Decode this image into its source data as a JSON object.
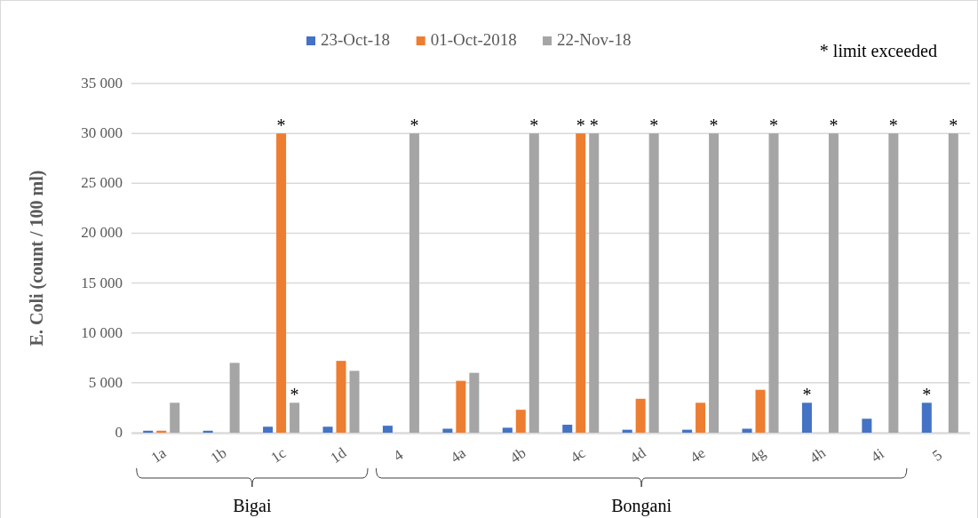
{
  "chart_data": {
    "type": "bar",
    "ylabel": "E. Coli (count / 100 ml)",
    "categories": [
      "1a",
      "1b",
      "1c",
      "1d",
      "4",
      "4a",
      "4b",
      "4c",
      "4d",
      "4e",
      "4g",
      "4h",
      "4i",
      "5"
    ],
    "series": [
      {
        "name": "23-Oct-18",
        "color": "#4472c4",
        "values": [
          200,
          200,
          600,
          600,
          700,
          400,
          500,
          800,
          300,
          300,
          400,
          3000,
          1400,
          3000
        ],
        "value_labels": [
          null,
          null,
          null,
          null,
          null,
          null,
          null,
          null,
          null,
          null,
          null,
          "*",
          null,
          "*"
        ]
      },
      {
        "name": "01-Oct-2018",
        "color": "#ed7d31",
        "values": [
          200,
          null,
          30000,
          7200,
          null,
          5200,
          2300,
          30000,
          3400,
          3000,
          4300,
          null,
          null,
          null
        ],
        "value_labels": [
          null,
          null,
          "*",
          null,
          null,
          null,
          null,
          "*",
          null,
          null,
          null,
          null,
          null,
          null
        ]
      },
      {
        "name": "22-Nov-18",
        "color": "#a5a5a5",
        "values": [
          3000,
          7000,
          3000,
          6200,
          30000,
          6000,
          30000,
          30000,
          30000,
          30000,
          30000,
          30000,
          30000,
          30000
        ],
        "value_labels": [
          null,
          null,
          "*",
          null,
          "*",
          null,
          "*",
          "*",
          "*",
          "*",
          "*",
          "*",
          "*",
          "*"
        ]
      }
    ],
    "ylim": [
      0,
      35000
    ],
    "yticks": [
      0,
      {
        "value": 5000,
        "label": "5 000"
      },
      {
        "value": 10000,
        "label": "10 000"
      },
      {
        "value": 15000,
        "label": "15 000"
      },
      {
        "value": 20000,
        "label": "20 000"
      },
      {
        "value": 25000,
        "label": "25 000"
      },
      {
        "value": 30000,
        "label": "30 000"
      },
      {
        "value": 35000,
        "label": "35 000"
      }
    ],
    "grid": "y",
    "legend": "top",
    "annotations": [
      "* limit exceeded",
      "Bigai",
      "Bongani"
    ]
  }
}
